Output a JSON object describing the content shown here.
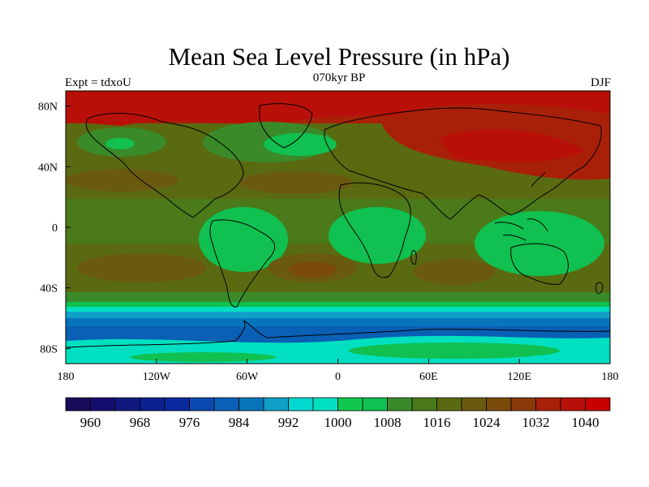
{
  "header": {
    "title": "Mean Sea Level Pressure (in hPa)",
    "subtitle": "070kyr BP",
    "left_label": "Expt = tdxoU",
    "right_label": "DJF"
  },
  "map": {
    "lon_ticks": [
      "180",
      "120W",
      "60W",
      "0",
      "60E",
      "120E",
      "180"
    ],
    "lat_ticks": [
      "80N",
      "40N",
      "0",
      "40S",
      "80S"
    ]
  },
  "colorbar": {
    "labels": [
      "960",
      "968",
      "976",
      "984",
      "992",
      "1000",
      "1008",
      "1016",
      "1024",
      "1032",
      "1040"
    ],
    "colors": [
      "#1a0a5a",
      "#150d6e",
      "#101880",
      "#0c2090",
      "#0a2aa0",
      "#0a4ab0",
      "#0a60b5",
      "#0875bb",
      "#10a0c8",
      "#00d8d0",
      "#00e0c0",
      "#10c850",
      "#10c050",
      "#3a8a2a",
      "#4a7a1a",
      "#5a6a10",
      "#6a5a10",
      "#7a4a08",
      "#8a3a08",
      "#a82008",
      "#b81008",
      "#c80000"
    ]
  }
}
